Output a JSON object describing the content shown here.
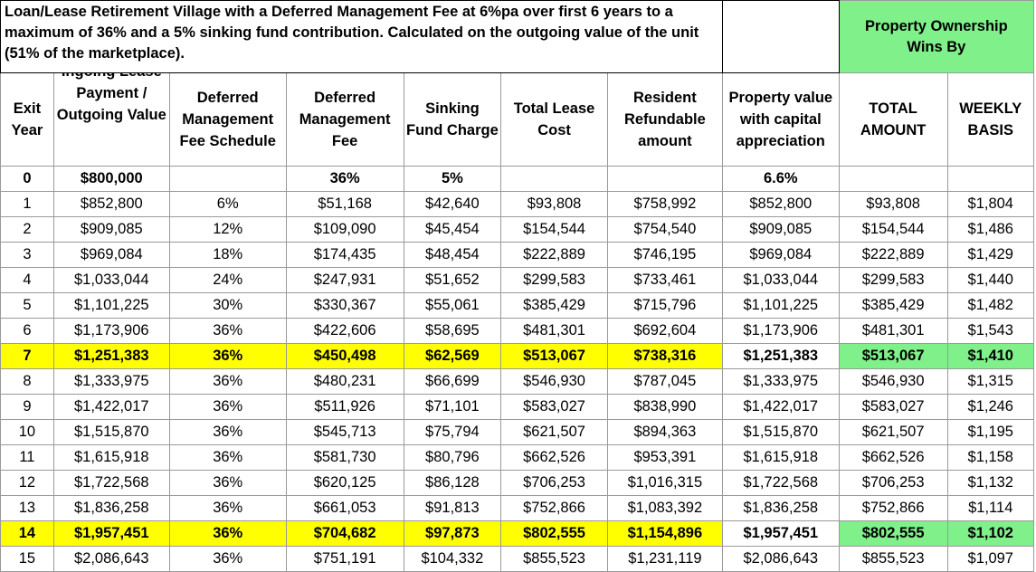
{
  "title": "Loan/Lease Retirement Village with a Deferred Management Fee at 6%pa over first 6 years to a maximum of 36% and a 5% sinking fund contribution. Calculated on the outgoing value of the unit (51% of the marketplace).",
  "wins_by": "Property Ownership Wins By",
  "headers": {
    "exit_year": "Exit Year",
    "lease_payment": "Ingoing Lease Payment / Outgoing Value",
    "dmf_schedule": "Deferred Management Fee Schedule",
    "dmf": "Deferred Management Fee",
    "sinking_fund": "Sinking Fund Charge",
    "total_lease_cost": "Total Lease Cost",
    "resident_refundable": "Resident Refundable amount",
    "property_value": "Property value with capital appreciation",
    "total_amount": "TOTAL AMOUNT",
    "weekly_basis": "WEEKLY BASIS"
  },
  "base_row": {
    "year": "0",
    "lease_payment": "$800,000",
    "dmf_schedule": "",
    "dmf": "36%",
    "sinking_fund": "5%",
    "total_lease_cost": "",
    "resident_refundable": "",
    "property_value": "6.6%",
    "total_amount": "",
    "weekly_basis": ""
  },
  "rows": [
    {
      "year": "1",
      "lease": "$852,800",
      "sched": "6%",
      "dmf": "$51,168",
      "sink": "$42,640",
      "total": "$93,808",
      "refund": "$758,992",
      "prop": "$852,800",
      "wins_total": "$93,808",
      "wins_weekly": "$1,804",
      "highlight": false
    },
    {
      "year": "2",
      "lease": "$909,085",
      "sched": "12%",
      "dmf": "$109,090",
      "sink": "$45,454",
      "total": "$154,544",
      "refund": "$754,540",
      "prop": "$909,085",
      "wins_total": "$154,544",
      "wins_weekly": "$1,486",
      "highlight": false
    },
    {
      "year": "3",
      "lease": "$969,084",
      "sched": "18%",
      "dmf": "$174,435",
      "sink": "$48,454",
      "total": "$222,889",
      "refund": "$746,195",
      "prop": "$969,084",
      "wins_total": "$222,889",
      "wins_weekly": "$1,429",
      "highlight": false
    },
    {
      "year": "4",
      "lease": "$1,033,044",
      "sched": "24%",
      "dmf": "$247,931",
      "sink": "$51,652",
      "total": "$299,583",
      "refund": "$733,461",
      "prop": "$1,033,044",
      "wins_total": "$299,583",
      "wins_weekly": "$1,440",
      "highlight": false
    },
    {
      "year": "5",
      "lease": "$1,101,225",
      "sched": "30%",
      "dmf": "$330,367",
      "sink": "$55,061",
      "total": "$385,429",
      "refund": "$715,796",
      "prop": "$1,101,225",
      "wins_total": "$385,429",
      "wins_weekly": "$1,482",
      "highlight": false
    },
    {
      "year": "6",
      "lease": "$1,173,906",
      "sched": "36%",
      "dmf": "$422,606",
      "sink": "$58,695",
      "total": "$481,301",
      "refund": "$692,604",
      "prop": "$1,173,906",
      "wins_total": "$481,301",
      "wins_weekly": "$1,543",
      "highlight": false
    },
    {
      "year": "7",
      "lease": "$1,251,383",
      "sched": "36%",
      "dmf": "$450,498",
      "sink": "$62,569",
      "total": "$513,067",
      "refund": "$738,316",
      "prop": "$1,251,383",
      "wins_total": "$513,067",
      "wins_weekly": "$1,410",
      "highlight": true
    },
    {
      "year": "8",
      "lease": "$1,333,975",
      "sched": "36%",
      "dmf": "$480,231",
      "sink": "$66,699",
      "total": "$546,930",
      "refund": "$787,045",
      "prop": "$1,333,975",
      "wins_total": "$546,930",
      "wins_weekly": "$1,315",
      "highlight": false
    },
    {
      "year": "9",
      "lease": "$1,422,017",
      "sched": "36%",
      "dmf": "$511,926",
      "sink": "$71,101",
      "total": "$583,027",
      "refund": "$838,990",
      "prop": "$1,422,017",
      "wins_total": "$583,027",
      "wins_weekly": "$1,246",
      "highlight": false
    },
    {
      "year": "10",
      "lease": "$1,515,870",
      "sched": "36%",
      "dmf": "$545,713",
      "sink": "$75,794",
      "total": "$621,507",
      "refund": "$894,363",
      "prop": "$1,515,870",
      "wins_total": "$621,507",
      "wins_weekly": "$1,195",
      "highlight": false
    },
    {
      "year": "11",
      "lease": "$1,615,918",
      "sched": "36%",
      "dmf": "$581,730",
      "sink": "$80,796",
      "total": "$662,526",
      "refund": "$953,391",
      "prop": "$1,615,918",
      "wins_total": "$662,526",
      "wins_weekly": "$1,158",
      "highlight": false
    },
    {
      "year": "12",
      "lease": "$1,722,568",
      "sched": "36%",
      "dmf": "$620,125",
      "sink": "$86,128",
      "total": "$706,253",
      "refund": "$1,016,315",
      "prop": "$1,722,568",
      "wins_total": "$706,253",
      "wins_weekly": "$1,132",
      "highlight": false
    },
    {
      "year": "13",
      "lease": "$1,836,258",
      "sched": "36%",
      "dmf": "$661,053",
      "sink": "$91,813",
      "total": "$752,866",
      "refund": "$1,083,392",
      "prop": "$1,836,258",
      "wins_total": "$752,866",
      "wins_weekly": "$1,114",
      "highlight": false
    },
    {
      "year": "14",
      "lease": "$1,957,451",
      "sched": "36%",
      "dmf": "$704,682",
      "sink": "$97,873",
      "total": "$802,555",
      "refund": "$1,154,896",
      "prop": "$1,957,451",
      "wins_total": "$802,555",
      "wins_weekly": "$1,102",
      "highlight": true
    },
    {
      "year": "15",
      "lease": "$2,086,643",
      "sched": "36%",
      "dmf": "$751,191",
      "sink": "$104,332",
      "total": "$855,523",
      "refund": "$1,231,119",
      "prop": "$2,086,643",
      "wins_total": "$855,523",
      "wins_weekly": "$1,097",
      "highlight": false
    }
  ]
}
